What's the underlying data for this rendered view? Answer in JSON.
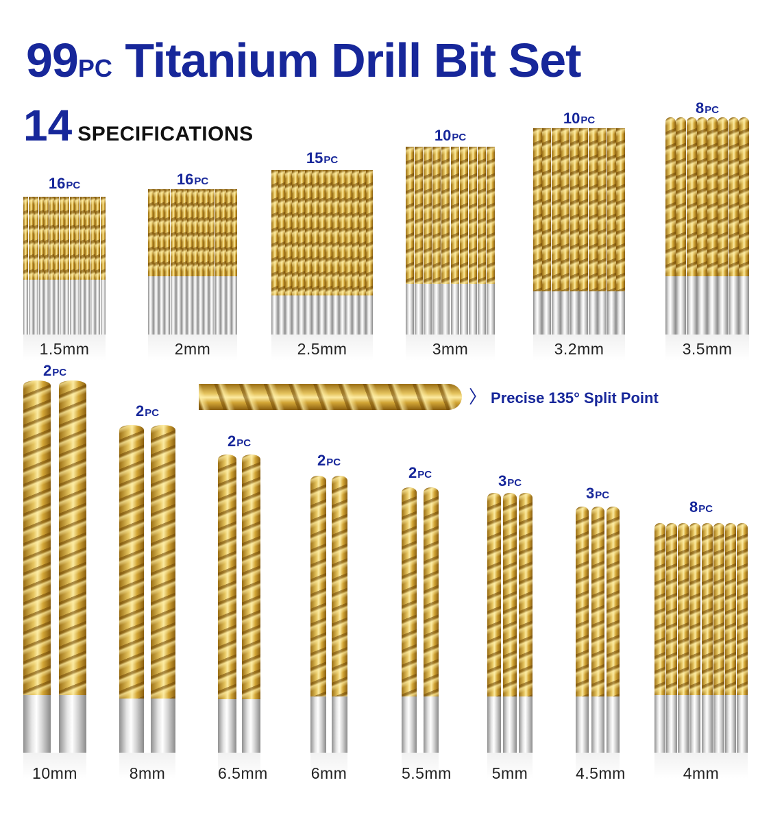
{
  "title": {
    "number": "99",
    "pc": "PC",
    "text": "Titanium Drill Bit Set"
  },
  "specs": {
    "number": "14",
    "label": "SPECIFICATIONS"
  },
  "callout": {
    "text": "Precise 135° Split Point"
  },
  "colors": {
    "brand": "#17279a",
    "gold": "#d1a736",
    "silver": "#cfcfcf"
  },
  "groups": [
    {
      "size": "1.5mm",
      "count": "16",
      "pc": "PC"
    },
    {
      "size": "2mm",
      "count": "16",
      "pc": "PC"
    },
    {
      "size": "2.5mm",
      "count": "15",
      "pc": "PC"
    },
    {
      "size": "3mm",
      "count": "10",
      "pc": "PC"
    },
    {
      "size": "3.2mm",
      "count": "10",
      "pc": "PC"
    },
    {
      "size": "3.5mm",
      "count": "8",
      "pc": "PC"
    },
    {
      "size": "10mm",
      "count": "2",
      "pc": "PC"
    },
    {
      "size": "8mm",
      "count": "2",
      "pc": "PC"
    },
    {
      "size": "6.5mm",
      "count": "2",
      "pc": "PC"
    },
    {
      "size": "6mm",
      "count": "2",
      "pc": "PC"
    },
    {
      "size": "5.5mm",
      "count": "2",
      "pc": "PC"
    },
    {
      "size": "5mm",
      "count": "3",
      "pc": "PC"
    },
    {
      "size": "4.5mm",
      "count": "3",
      "pc": "PC"
    },
    {
      "size": "4mm",
      "count": "8",
      "pc": "PC"
    }
  ]
}
